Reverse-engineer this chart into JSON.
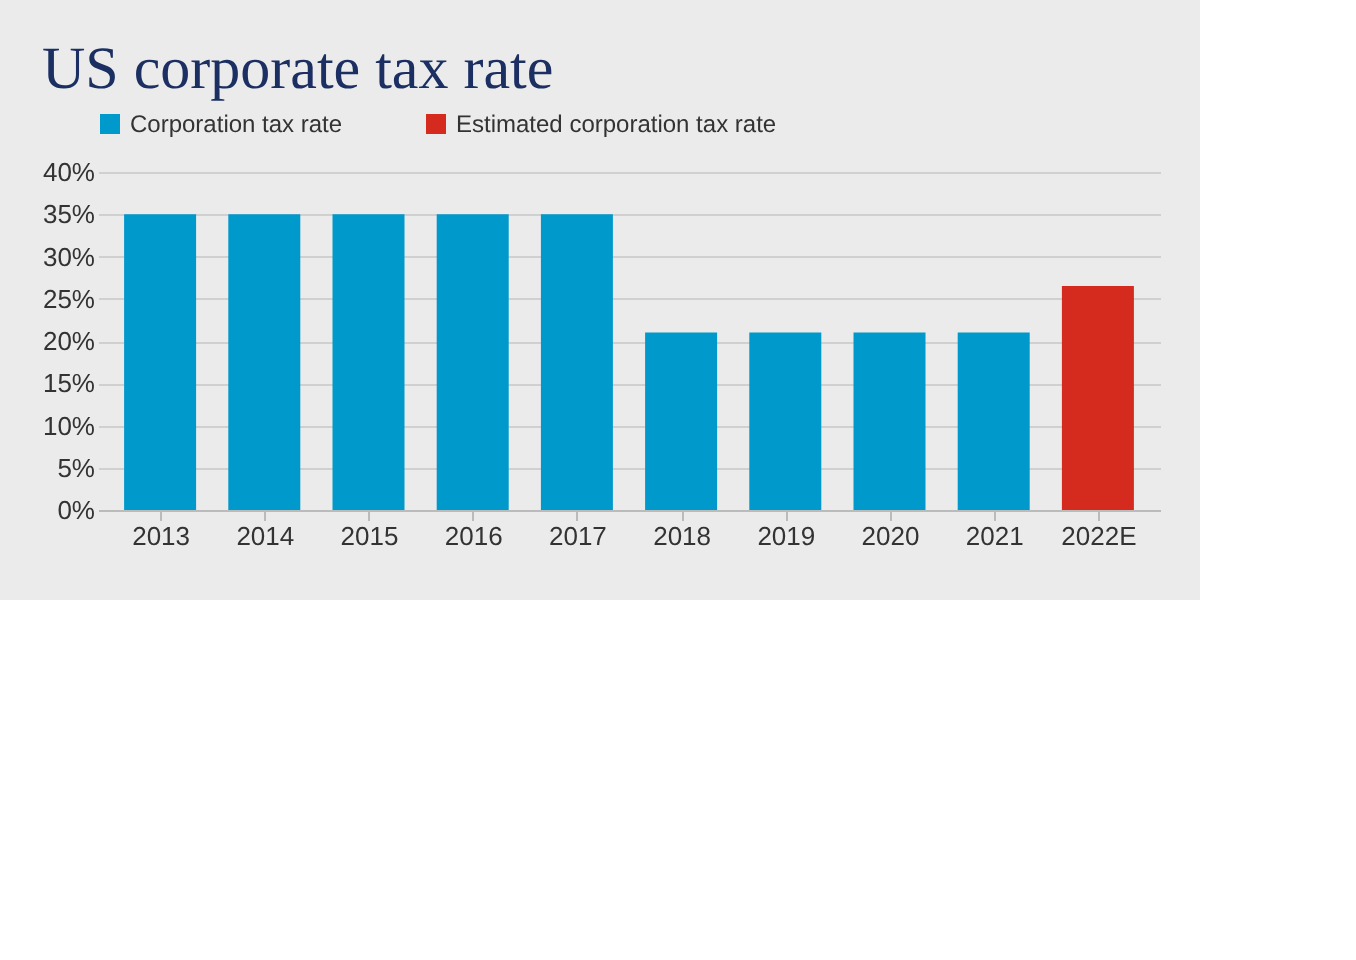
{
  "chart_data": {
    "type": "bar",
    "title": "US corporate tax rate",
    "categories": [
      "2013",
      "2014",
      "2015",
      "2016",
      "2017",
      "2018",
      "2019",
      "2020",
      "2021",
      "2022E"
    ],
    "series": [
      {
        "name": "Corporation tax rate",
        "color": "#0099cc",
        "values": [
          35,
          35,
          35,
          35,
          35,
          21,
          21,
          21,
          21,
          null
        ]
      },
      {
        "name": "Estimated corporation tax rate",
        "color": "#d52b1e",
        "values": [
          null,
          null,
          null,
          null,
          null,
          null,
          null,
          null,
          null,
          26.5
        ]
      }
    ],
    "ylim": [
      0,
      40
    ],
    "yticks": [
      {
        "value": 0,
        "label": "0%"
      },
      {
        "value": 5,
        "label": "5%"
      },
      {
        "value": 10,
        "label": "10%"
      },
      {
        "value": 15,
        "label": "15%"
      },
      {
        "value": 20,
        "label": "20%"
      },
      {
        "value": 25,
        "label": "25%"
      },
      {
        "value": 30,
        "label": "30%"
      },
      {
        "value": 35,
        "label": "35%"
      },
      {
        "value": 40,
        "label": "40%"
      }
    ],
    "grid": "y",
    "legend": "top"
  }
}
